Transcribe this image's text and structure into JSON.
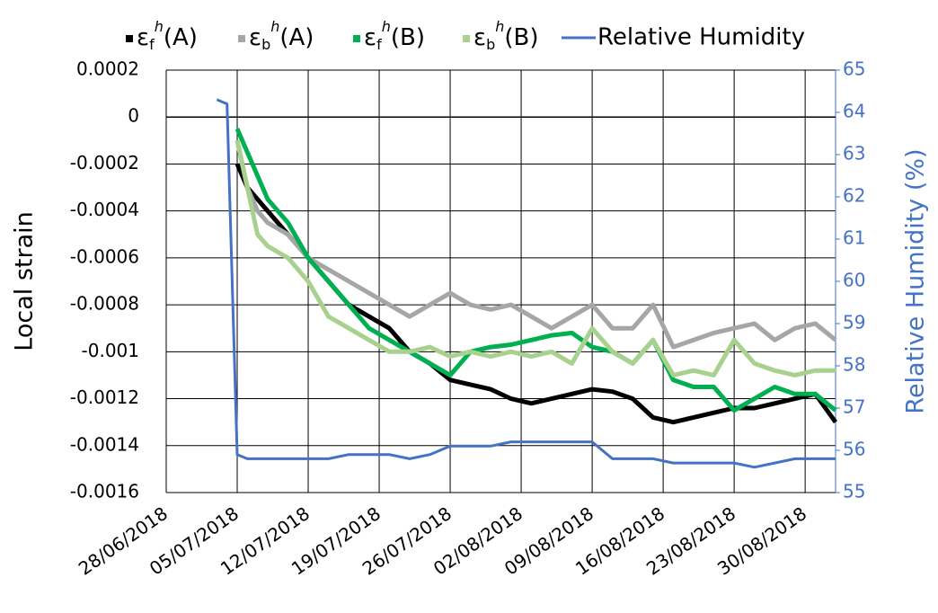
{
  "chart_data": {
    "type": "line",
    "y_label": "Local strain",
    "y2_label": "Relative Humidity (%)",
    "x": [
      "03/07/2018",
      "04/07/2018",
      "05/07/2018",
      "06/07/2018",
      "07/07/2018",
      "08/07/2018",
      "10/07/2018",
      "12/07/2018",
      "14/07/2018",
      "16/07/2018",
      "18/07/2018",
      "20/07/2018",
      "22/07/2018",
      "24/07/2018",
      "26/07/2018",
      "28/07/2018",
      "30/07/2018",
      "01/08/2018",
      "03/08/2018",
      "05/08/2018",
      "07/08/2018",
      "09/08/2018",
      "11/08/2018",
      "13/08/2018",
      "15/08/2018",
      "17/08/2018",
      "19/08/2018",
      "21/08/2018",
      "23/08/2018",
      "25/08/2018",
      "27/08/2018",
      "29/08/2018",
      "31/08/2018",
      "02/09/2018"
    ],
    "series": [
      {
        "name": "εfh(A)",
        "color": "#000000",
        "values": [
          null,
          null,
          -0.0002,
          -0.0003,
          -0.00035,
          -0.0004,
          -0.0005,
          -0.0006,
          -0.0007,
          -0.0008,
          -0.00085,
          -0.0009,
          -0.001,
          -0.00105,
          -0.00112,
          -0.00114,
          -0.00116,
          -0.0012,
          -0.00122,
          -0.0012,
          -0.00118,
          -0.00116,
          -0.00117,
          -0.0012,
          -0.00128,
          -0.0013,
          -0.00128,
          -0.00126,
          -0.00124,
          -0.00124,
          -0.00122,
          -0.0012,
          -0.00118,
          -0.0013
        ]
      },
      {
        "name": "εbh(A)",
        "color": "#a6a6a6",
        "values": [
          null,
          null,
          -0.0001,
          -0.0003,
          -0.0004,
          -0.00045,
          -0.0005,
          -0.0006,
          -0.00065,
          -0.0007,
          -0.00075,
          -0.0008,
          -0.00085,
          -0.0008,
          -0.00075,
          -0.0008,
          -0.00082,
          -0.0008,
          -0.00085,
          -0.0009,
          -0.00085,
          -0.0008,
          -0.0009,
          -0.0009,
          -0.0008,
          -0.00098,
          -0.00095,
          -0.00092,
          -0.0009,
          -0.00088,
          -0.00095,
          -0.0009,
          -0.00088,
          -0.00095
        ]
      },
      {
        "name": "εfh(B)",
        "color": "#00b050",
        "values": [
          null,
          null,
          -5e-05,
          -0.00015,
          -0.00025,
          -0.00035,
          -0.00045,
          -0.0006,
          -0.0007,
          -0.0008,
          -0.0009,
          -0.00095,
          -0.001,
          -0.00105,
          -0.0011,
          -0.001,
          -0.00098,
          -0.00097,
          -0.00095,
          -0.00093,
          -0.00092,
          -0.00098,
          -0.001,
          -0.00105,
          -0.00095,
          -0.00112,
          -0.00115,
          -0.00115,
          -0.00125,
          -0.0012,
          -0.00115,
          -0.00118,
          -0.00118,
          -0.00125
        ]
      },
      {
        "name": "εbh(B)",
        "color": "#a9d18e",
        "values": [
          null,
          null,
          -0.0001,
          -0.0003,
          -0.0005,
          -0.00055,
          -0.0006,
          -0.0007,
          -0.00085,
          -0.0009,
          -0.00095,
          -0.001,
          -0.001,
          -0.00098,
          -0.00102,
          -0.001,
          -0.00102,
          -0.001,
          -0.00102,
          -0.001,
          -0.00105,
          -0.0009,
          -0.001,
          -0.00105,
          -0.00095,
          -0.0011,
          -0.00108,
          -0.0011,
          -0.00095,
          -0.00105,
          -0.00108,
          -0.0011,
          -0.00108,
          -0.00108
        ]
      },
      {
        "name": "Relative Humidity",
        "color": "#4472c4",
        "axis": "y2",
        "values": [
          64.3,
          64.2,
          55.9,
          55.8,
          55.8,
          55.8,
          55.8,
          55.8,
          55.8,
          55.9,
          55.9,
          55.9,
          55.8,
          55.9,
          56.1,
          56.1,
          56.1,
          56.2,
          56.2,
          56.2,
          56.2,
          56.2,
          55.8,
          55.8,
          55.8,
          55.7,
          55.7,
          55.7,
          55.7,
          55.6,
          55.7,
          55.8,
          55.8,
          55.8
        ]
      }
    ],
    "xlim": [
      "28/06/2018",
      "02/09/2018"
    ],
    "xticks": [
      "28/06/2018",
      "05/07/2018",
      "12/07/2018",
      "19/07/2018",
      "26/07/2018",
      "02/08/2018",
      "09/08/2018",
      "16/08/2018",
      "23/08/2018",
      "30/08/2018"
    ],
    "ylim": [
      -0.0016,
      0.0002
    ],
    "yticks": [
      -0.0016,
      -0.0014,
      -0.0012,
      -0.001,
      -0.0008,
      -0.0006,
      -0.0004,
      -0.0002,
      0,
      0.0002
    ],
    "y2lim": [
      55,
      65
    ],
    "y2ticks": [
      55,
      56,
      57,
      58,
      59,
      60,
      61,
      62,
      63,
      64,
      65
    ],
    "grid": true,
    "legend": "top"
  }
}
